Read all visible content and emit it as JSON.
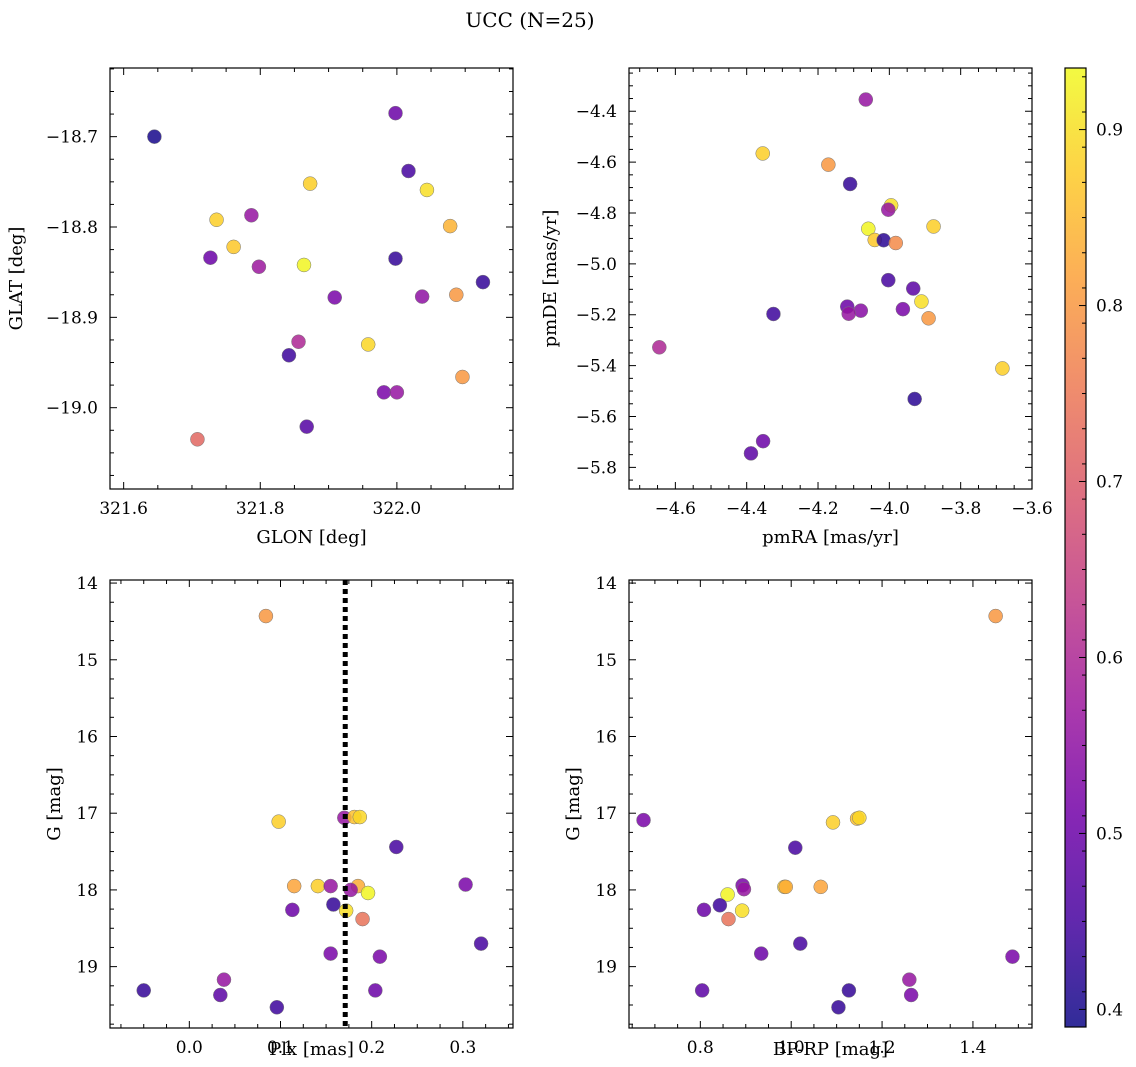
{
  "figure": {
    "title": "UCC (N=25)"
  },
  "chart_data": [
    {
      "type": "scatter",
      "xlabel": "GLON [deg]",
      "ylabel": "GLAT [deg]",
      "xlim": [
        321.58,
        322.17
      ],
      "ylim": [
        -19.09,
        -18.624
      ],
      "xticks": [
        321.6,
        321.8,
        322.0
      ],
      "xtick_labels": [
        "321.6",
        "321.8",
        "322.0"
      ],
      "yticks": [
        -18.7,
        -18.8,
        -18.9,
        -19.0
      ],
      "ytick_labels": [
        "−18.7",
        "−18.8",
        "−18.9",
        "−19.0"
      ],
      "points": [
        {
          "x": 321.645,
          "y": -18.7,
          "c": 0.4
        },
        {
          "x": 321.998,
          "y": -18.674,
          "c": 0.5
        },
        {
          "x": 322.017,
          "y": -18.738,
          "c": 0.45
        },
        {
          "x": 321.873,
          "y": -18.752,
          "c": 0.88
        },
        {
          "x": 322.044,
          "y": -18.759,
          "c": 0.9
        },
        {
          "x": 321.736,
          "y": -18.792,
          "c": 0.88
        },
        {
          "x": 321.787,
          "y": -18.787,
          "c": 0.56
        },
        {
          "x": 322.078,
          "y": -18.799,
          "c": 0.84
        },
        {
          "x": 321.761,
          "y": -18.822,
          "c": 0.87
        },
        {
          "x": 321.727,
          "y": -18.834,
          "c": 0.5
        },
        {
          "x": 321.998,
          "y": -18.835,
          "c": 0.43
        },
        {
          "x": 321.798,
          "y": -18.844,
          "c": 0.57
        },
        {
          "x": 321.864,
          "y": -18.842,
          "c": 0.93
        },
        {
          "x": 322.126,
          "y": -18.861,
          "c": 0.43
        },
        {
          "x": 322.087,
          "y": -18.875,
          "c": 0.8
        },
        {
          "x": 322.037,
          "y": -18.877,
          "c": 0.55
        },
        {
          "x": 321.909,
          "y": -18.878,
          "c": 0.52
        },
        {
          "x": 321.856,
          "y": -18.927,
          "c": 0.6
        },
        {
          "x": 321.958,
          "y": -18.93,
          "c": 0.89
        },
        {
          "x": 321.842,
          "y": -18.942,
          "c": 0.44
        },
        {
          "x": 322.096,
          "y": -18.966,
          "c": 0.8
        },
        {
          "x": 321.981,
          "y": -18.983,
          "c": 0.52
        },
        {
          "x": 322.0,
          "y": -18.983,
          "c": 0.56
        },
        {
          "x": 321.868,
          "y": -19.021,
          "c": 0.47
        },
        {
          "x": 321.708,
          "y": -19.035,
          "c": 0.72
        }
      ]
    },
    {
      "type": "scatter",
      "xlabel": "pmRA [mas/yr]",
      "ylabel": "pmDE [mas/yr]",
      "xlim": [
        -4.73,
        -3.6
      ],
      "ylim": [
        -5.885,
        -4.23
      ],
      "xticks": [
        -4.6,
        -4.4,
        -4.2,
        -4.0,
        -3.8,
        -3.6
      ],
      "xtick_labels": [
        "−4.6",
        "−4.4",
        "−4.2",
        "−4.0",
        "−3.8",
        "−3.6"
      ],
      "yticks": [
        -4.4,
        -4.6,
        -4.8,
        -5.0,
        -5.2,
        -5.4,
        -5.6,
        -5.8
      ],
      "ytick_labels": [
        "−4.4",
        "−4.6",
        "−4.8",
        "−5.0",
        "−5.2",
        "−5.4",
        "−5.6",
        "−5.8"
      ],
      "points": [
        {
          "x": -4.066,
          "y": -4.354,
          "c": 0.56
        },
        {
          "x": -4.355,
          "y": -4.566,
          "c": 0.88
        },
        {
          "x": -4.171,
          "y": -4.61,
          "c": 0.8
        },
        {
          "x": -4.11,
          "y": -4.686,
          "c": 0.43
        },
        {
          "x": -3.995,
          "y": -4.77,
          "c": 0.9
        },
        {
          "x": -4.003,
          "y": -4.787,
          "c": 0.56
        },
        {
          "x": -3.876,
          "y": -4.853,
          "c": 0.88
        },
        {
          "x": -4.059,
          "y": -4.862,
          "c": 0.93
        },
        {
          "x": -4.041,
          "y": -4.906,
          "c": 0.87
        },
        {
          "x": -4.016,
          "y": -4.907,
          "c": 0.42
        },
        {
          "x": -3.982,
          "y": -4.918,
          "c": 0.78
        },
        {
          "x": -4.003,
          "y": -5.064,
          "c": 0.45
        },
        {
          "x": -3.933,
          "y": -5.097,
          "c": 0.48
        },
        {
          "x": -3.91,
          "y": -5.148,
          "c": 0.9
        },
        {
          "x": -4.118,
          "y": -5.168,
          "c": 0.5
        },
        {
          "x": -3.962,
          "y": -5.178,
          "c": 0.52
        },
        {
          "x": -4.08,
          "y": -5.184,
          "c": 0.54
        },
        {
          "x": -4.114,
          "y": -5.196,
          "c": 0.56
        },
        {
          "x": -4.325,
          "y": -5.197,
          "c": 0.44
        },
        {
          "x": -3.89,
          "y": -5.214,
          "c": 0.8
        },
        {
          "x": -4.645,
          "y": -5.328,
          "c": 0.6
        },
        {
          "x": -3.683,
          "y": -5.411,
          "c": 0.88
        },
        {
          "x": -3.929,
          "y": -5.531,
          "c": 0.42
        },
        {
          "x": -4.354,
          "y": -5.697,
          "c": 0.5
        },
        {
          "x": -4.388,
          "y": -5.745,
          "c": 0.48
        }
      ]
    },
    {
      "type": "scatter",
      "xlabel": "Plx [mas]",
      "ylabel": "G [mag]",
      "xlim": [
        -0.087,
        0.355
      ],
      "ylim": [
        19.8,
        13.96
      ],
      "xticks": [
        0.0,
        0.1,
        0.2,
        0.3
      ],
      "xtick_labels": [
        "0.0",
        "0.1",
        "0.2",
        "0.3"
      ],
      "yticks": [
        14,
        15,
        16,
        17,
        18,
        19
      ],
      "ytick_labels": [
        "14",
        "15",
        "16",
        "17",
        "18",
        "19"
      ],
      "vline": 0.171,
      "points": [
        {
          "x": 0.084,
          "y": 14.43,
          "c": 0.8
        },
        {
          "x": 0.098,
          "y": 17.11,
          "c": 0.88
        },
        {
          "x": 0.17,
          "y": 17.06,
          "c": 0.56
        },
        {
          "x": 0.181,
          "y": 17.05,
          "c": 0.86
        },
        {
          "x": 0.187,
          "y": 17.05,
          "c": 0.89
        },
        {
          "x": 0.227,
          "y": 17.44,
          "c": 0.45
        },
        {
          "x": 0.303,
          "y": 17.93,
          "c": 0.52
        },
        {
          "x": 0.115,
          "y": 17.95,
          "c": 0.82
        },
        {
          "x": 0.141,
          "y": 17.95,
          "c": 0.88
        },
        {
          "x": 0.155,
          "y": 17.95,
          "c": 0.56
        },
        {
          "x": 0.185,
          "y": 17.95,
          "c": 0.83
        },
        {
          "x": 0.177,
          "y": 18.0,
          "c": 0.56
        },
        {
          "x": 0.196,
          "y": 18.04,
          "c": 0.93
        },
        {
          "x": 0.158,
          "y": 18.19,
          "c": 0.43
        },
        {
          "x": 0.172,
          "y": 18.27,
          "c": 0.9
        },
        {
          "x": 0.113,
          "y": 18.26,
          "c": 0.5
        },
        {
          "x": 0.19,
          "y": 18.38,
          "c": 0.74
        },
        {
          "x": 0.32,
          "y": 18.7,
          "c": 0.45
        },
        {
          "x": 0.155,
          "y": 18.83,
          "c": 0.52
        },
        {
          "x": 0.209,
          "y": 18.87,
          "c": 0.52
        },
        {
          "x": 0.038,
          "y": 19.17,
          "c": 0.56
        },
        {
          "x": 0.034,
          "y": 19.37,
          "c": 0.48
        },
        {
          "x": -0.05,
          "y": 19.31,
          "c": 0.43
        },
        {
          "x": 0.204,
          "y": 19.31,
          "c": 0.5
        },
        {
          "x": 0.096,
          "y": 19.53,
          "c": 0.44
        }
      ]
    },
    {
      "type": "scatter",
      "xlabel": "BP-RP [mag]",
      "ylabel": "G [mag]",
      "xlim": [
        0.643,
        1.53
      ],
      "ylim": [
        19.8,
        13.96
      ],
      "xticks": [
        0.8,
        1.0,
        1.2,
        1.4
      ],
      "xtick_labels": [
        "0.8",
        "1.0",
        "1.2",
        "1.4"
      ],
      "yticks": [
        14,
        15,
        16,
        17,
        18,
        19
      ],
      "ytick_labels": [
        "14",
        "15",
        "16",
        "17",
        "18",
        "19"
      ],
      "points": [
        {
          "x": 1.45,
          "y": 14.43,
          "c": 0.8
        },
        {
          "x": 0.675,
          "y": 17.09,
          "c": 0.52
        },
        {
          "x": 1.092,
          "y": 17.12,
          "c": 0.88
        },
        {
          "x": 1.145,
          "y": 17.07,
          "c": 0.86
        },
        {
          "x": 1.15,
          "y": 17.06,
          "c": 0.89
        },
        {
          "x": 1.009,
          "y": 17.45,
          "c": 0.45
        },
        {
          "x": 0.893,
          "y": 17.94,
          "c": 0.52
        },
        {
          "x": 0.896,
          "y": 17.99,
          "c": 0.56
        },
        {
          "x": 0.985,
          "y": 17.96,
          "c": 0.88
        },
        {
          "x": 0.988,
          "y": 17.96,
          "c": 0.83
        },
        {
          "x": 1.065,
          "y": 17.96,
          "c": 0.82
        },
        {
          "x": 0.86,
          "y": 18.06,
          "c": 0.93
        },
        {
          "x": 0.843,
          "y": 18.2,
          "c": 0.44
        },
        {
          "x": 0.808,
          "y": 18.26,
          "c": 0.5
        },
        {
          "x": 0.892,
          "y": 18.27,
          "c": 0.9
        },
        {
          "x": 0.862,
          "y": 18.38,
          "c": 0.74
        },
        {
          "x": 1.02,
          "y": 18.7,
          "c": 0.45
        },
        {
          "x": 0.934,
          "y": 18.83,
          "c": 0.5
        },
        {
          "x": 1.487,
          "y": 18.87,
          "c": 0.52
        },
        {
          "x": 1.26,
          "y": 19.17,
          "c": 0.56
        },
        {
          "x": 0.804,
          "y": 19.31,
          "c": 0.48
        },
        {
          "x": 1.127,
          "y": 19.31,
          "c": 0.43
        },
        {
          "x": 1.264,
          "y": 19.37,
          "c": 0.52
        },
        {
          "x": 1.104,
          "y": 19.53,
          "c": 0.43
        }
      ]
    }
  ],
  "colorbar": {
    "range": [
      0.39,
      0.935
    ],
    "ticks": [
      0.4,
      0.5,
      0.6,
      0.7,
      0.8,
      0.9
    ],
    "tick_labels": [
      "0.4",
      "0.5",
      "0.6",
      "0.7",
      "0.8",
      "0.9"
    ],
    "colormap": "plasma",
    "stops": [
      "#0d0887",
      "#46039f",
      "#7201a8",
      "#9c179e",
      "#bd3786",
      "#d8576b",
      "#ed7953",
      "#fb9f3a",
      "#fdca26",
      "#f0f921"
    ]
  }
}
